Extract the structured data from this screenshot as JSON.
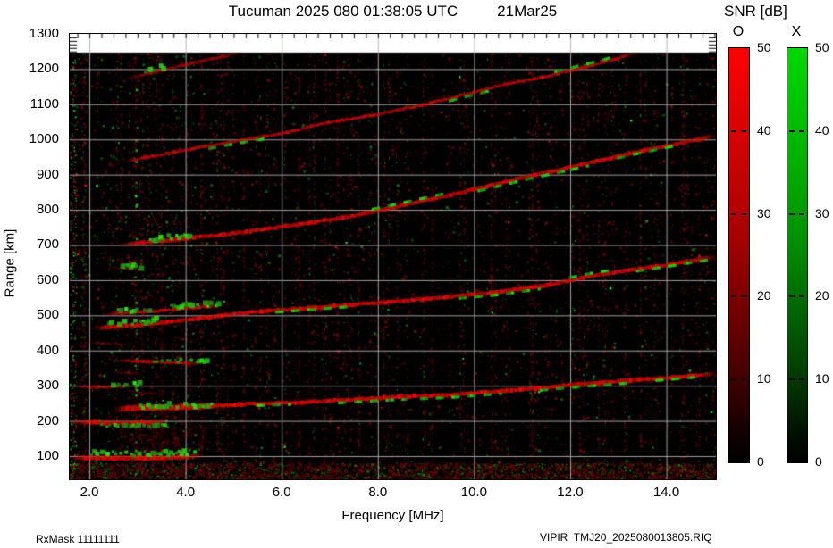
{
  "title": {
    "main": "Tucuman 2025 080 01:38:05 UTC",
    "date": "21Mar25"
  },
  "footer": {
    "left": "RxMask 11111111",
    "right": "VIPIR  TMJ20_2025080013805.RIQ"
  },
  "axes": {
    "x_label": "Frequency [MHz]",
    "y_label": "Range [km]",
    "xlim": [
      1.59,
      15.03
    ],
    "ylim": [
      34,
      1300
    ],
    "x_ticks": [
      {
        "v": 2,
        "label": "2.0"
      },
      {
        "v": 4,
        "label": "4.0"
      },
      {
        "v": 6,
        "label": "6.0"
      },
      {
        "v": 8,
        "label": "8.0"
      },
      {
        "v": 10,
        "label": "10.0"
      },
      {
        "v": 12,
        "label": "12.0"
      },
      {
        "v": 14,
        "label": "14.0"
      }
    ],
    "y_ticks": [
      {
        "v": 100,
        "label": "100"
      },
      {
        "v": 200,
        "label": "200"
      },
      {
        "v": 300,
        "label": "300"
      },
      {
        "v": 400,
        "label": "400"
      },
      {
        "v": 500,
        "label": "500"
      },
      {
        "v": 600,
        "label": "600"
      },
      {
        "v": 700,
        "label": "700"
      },
      {
        "v": 800,
        "label": "800"
      },
      {
        "v": 900,
        "label": "900"
      },
      {
        "v": 1000,
        "label": "1000"
      },
      {
        "v": 1100,
        "label": "1100"
      },
      {
        "v": 1200,
        "label": "1200"
      },
      {
        "v": 1300,
        "label": "1300"
      }
    ],
    "grid_x_step": 2,
    "grid_y_step": 100
  },
  "colorbar": {
    "title": "SNR [dB]",
    "range": [
      0,
      50
    ],
    "ticks": [
      50,
      40,
      30,
      20,
      10,
      0
    ],
    "bars": [
      {
        "label": "O",
        "mode": "ordinary",
        "color": "#ff0000"
      },
      {
        "label": "X",
        "mode": "extraordinary",
        "color": "#00cc00"
      }
    ]
  },
  "chart_data": {
    "type": "heatmap",
    "station": "Tucuman",
    "timestamp": "2025 080 01:38:05 UTC",
    "date_label": "21Mar25",
    "x_unit": "MHz",
    "y_unit": "km",
    "value_unit": "dB SNR",
    "background": "#000000",
    "o_mode_color": "#ff0000",
    "x_mode_color": "#00cc00",
    "grid_color": "#aaaaaa",
    "data_max_range_km": 1247,
    "traces": [
      {
        "name": "E-layer-1st-hop",
        "w": 5,
        "a": 1.0,
        "points": [
          [
            1.6,
            96
          ],
          [
            2.6,
            94
          ],
          [
            3.4,
            95
          ],
          [
            4.05,
            98
          ],
          [
            4.35,
            102
          ]
        ],
        "green": [
          {
            "f0": 2.05,
            "f1": 4.2,
            "dy": -5,
            "blob": true
          }
        ]
      },
      {
        "name": "E-layer-2nd-hop",
        "w": 4,
        "a": 0.95,
        "points": [
          [
            1.6,
            197
          ],
          [
            2.4,
            194
          ],
          [
            3.0,
            194
          ],
          [
            3.65,
            198
          ]
        ],
        "green": [
          {
            "f0": 2.2,
            "f1": 3.65,
            "dy": 4,
            "blob": true
          }
        ]
      },
      {
        "name": "E-layer-3rd-hop",
        "w": 3,
        "a": 0.7,
        "points": [
          [
            1.65,
            299
          ],
          [
            2.25,
            296
          ],
          [
            2.85,
            298
          ]
        ],
        "green": [
          {
            "f0": 2.5,
            "f1": 3.1,
            "dy": -3,
            "blob": true
          }
        ]
      },
      {
        "name": "Es-stub-335",
        "w": 2,
        "a": 0.45,
        "points": [
          [
            2.45,
            338
          ],
          [
            3.15,
            335
          ]
        ],
        "green": []
      },
      {
        "name": "Es-stub-370",
        "w": 3,
        "a": 0.8,
        "points": [
          [
            2.55,
            372
          ],
          [
            3.6,
            366
          ],
          [
            4.35,
            362
          ]
        ],
        "green": [
          {
            "f0": 3.35,
            "f1": 4.45,
            "dy": -2,
            "blob": true
          }
        ]
      },
      {
        "name": "faint-stub-420",
        "w": 2,
        "a": 0.35,
        "points": [
          [
            1.9,
            424
          ],
          [
            2.9,
            417
          ]
        ],
        "green": []
      },
      {
        "name": "faint-stub-280",
        "w": 2,
        "a": 0.5,
        "points": [
          [
            2.8,
            281
          ],
          [
            3.5,
            276
          ]
        ],
        "green": []
      },
      {
        "name": "faint-stub-635",
        "w": 2,
        "a": 0.45,
        "points": [
          [
            2.3,
            638
          ],
          [
            3.2,
            630
          ]
        ],
        "green": [
          {
            "f0": 2.7,
            "f1": 3.1,
            "dy": -2,
            "blob": true
          }
        ]
      },
      {
        "name": "F-region-1-hop",
        "w": 4,
        "a": 1.0,
        "thick_f1": 4.6,
        "points": [
          [
            2.5,
            228
          ],
          [
            2.8,
            236
          ],
          [
            3.5,
            238
          ],
          [
            4.3,
            240
          ],
          [
            5.3,
            248
          ],
          [
            6.5,
            253
          ],
          [
            8.1,
            266
          ],
          [
            9.5,
            274
          ],
          [
            11,
            289
          ],
          [
            11.8,
            300
          ],
          [
            13,
            313
          ],
          [
            14,
            322
          ],
          [
            15.03,
            334
          ]
        ],
        "green": [
          {
            "f0": 2.95,
            "f1": 4.6,
            "dy": -2,
            "blob": true
          },
          {
            "f0": 5.5,
            "f1": 6.2,
            "dy": 2
          },
          {
            "f0": 7.2,
            "f1": 8.6,
            "dy": 3
          },
          {
            "f0": 8.9,
            "f1": 10.6,
            "dy": 3
          },
          {
            "f0": 11.4,
            "f1": 13.3,
            "dy": 3
          },
          {
            "f0": 13.8,
            "f1": 14.7,
            "dy": 2
          }
        ]
      },
      {
        "name": "F-region-2-hop-upper-branch",
        "w": 3,
        "a": 0.85,
        "points": [
          [
            2.3,
            503
          ],
          [
            3.0,
            508
          ],
          [
            3.9,
            519
          ],
          [
            4.8,
            527
          ]
        ],
        "green": [
          {
            "f0": 2.6,
            "f1": 3.3,
            "dy": -3,
            "blob": true
          },
          {
            "f0": 3.7,
            "f1": 4.8,
            "dy": -3,
            "blob": true
          }
        ]
      },
      {
        "name": "F-region-2-hop",
        "w": 4,
        "a": 0.95,
        "points": [
          [
            2.05,
            463
          ],
          [
            3.0,
            472
          ],
          [
            4.2,
            490
          ],
          [
            5.2,
            507
          ],
          [
            6.5,
            520
          ],
          [
            8.3,
            539
          ],
          [
            9.4,
            552
          ],
          [
            10.5,
            566
          ],
          [
            11.5,
            585
          ],
          [
            12.5,
            614
          ],
          [
            13.5,
            633
          ],
          [
            14.3,
            650
          ],
          [
            15.03,
            666
          ]
        ],
        "green": [
          {
            "f0": 2.35,
            "f1": 3.4,
            "dy": -3,
            "blob": true
          },
          {
            "f0": 5.9,
            "f1": 7.5,
            "dy": 2
          },
          {
            "f0": 9.7,
            "f1": 11.4,
            "dy": 3
          },
          {
            "f0": 12.0,
            "f1": 12.9,
            "dy": -3
          },
          {
            "f0": 13.4,
            "f1": 15.0,
            "dy": 2
          }
        ]
      },
      {
        "name": "F-region-3-hop",
        "w": 4,
        "a": 0.9,
        "points": [
          [
            2.65,
            700
          ],
          [
            3.5,
            712
          ],
          [
            5,
            733
          ],
          [
            6.5,
            761
          ],
          [
            7.5,
            783
          ],
          [
            8.3,
            806
          ],
          [
            9.6,
            845
          ],
          [
            11,
            891
          ],
          [
            12.3,
            930
          ],
          [
            13.5,
            968
          ],
          [
            15.03,
            1010
          ]
        ],
        "green": [
          {
            "f0": 3.1,
            "f1": 4.1,
            "dy": -3,
            "blob": true
          },
          {
            "f0": 7.9,
            "f1": 9.4,
            "dy": -3
          },
          {
            "f0": 10.1,
            "f1": 12.4,
            "dy": 3
          },
          {
            "f0": 13.0,
            "f1": 14.3,
            "dy": 2
          }
        ]
      },
      {
        "name": "F-region-4-hop",
        "w": 3,
        "a": 0.8,
        "points": [
          [
            2.7,
            936
          ],
          [
            4,
            970
          ],
          [
            5.1,
            997
          ],
          [
            6.1,
            1020
          ],
          [
            7,
            1049
          ],
          [
            8,
            1072
          ],
          [
            9,
            1100
          ],
          [
            10.5,
            1152
          ],
          [
            11.5,
            1179
          ],
          [
            12.5,
            1212
          ],
          [
            13.4,
            1246
          ]
        ],
        "green": [
          {
            "f0": 4.5,
            "f1": 5.7,
            "dy": 3
          },
          {
            "f0": 9.5,
            "f1": 10.3,
            "dy": 3
          },
          {
            "f0": 11.7,
            "f1": 12.9,
            "dy": -3
          }
        ]
      },
      {
        "name": "F-region-5-hop",
        "w": 3,
        "a": 0.6,
        "points": [
          [
            2.75,
            1172
          ],
          [
            3.5,
            1196
          ],
          [
            4.3,
            1222
          ],
          [
            5.15,
            1246
          ]
        ],
        "green": [
          {
            "f0": 3.05,
            "f1": 3.6,
            "dy": -3,
            "blob": true
          }
        ]
      }
    ],
    "rfi_columns": [
      {
        "f": 2.95,
        "alpha": 0.1,
        "color": "red"
      },
      {
        "f": 3.5,
        "alpha": 0.05,
        "color": "red"
      },
      {
        "f": 4.32,
        "alpha": 0.06,
        "color": "red"
      },
      {
        "f": 4.78,
        "alpha": 0.05,
        "color": "red"
      },
      {
        "f": 5.2,
        "alpha": 0.04,
        "color": "red"
      },
      {
        "f": 6.35,
        "alpha": 0.05,
        "color": "red"
      },
      {
        "f": 7.15,
        "alpha": 0.04,
        "color": "red"
      },
      {
        "f": 9.12,
        "alpha": 0.05,
        "color": "red"
      },
      {
        "f": 10.35,
        "alpha": 0.04,
        "color": "red"
      },
      {
        "f": 11.2,
        "alpha": 0.05,
        "color": "red"
      },
      {
        "f": 12.18,
        "alpha": 0.04,
        "color": "red"
      },
      {
        "f": 13.45,
        "alpha": 0.04,
        "color": "red"
      },
      {
        "f": 14.35,
        "alpha": 0.04,
        "color": "red"
      }
    ],
    "diffuse": [
      {
        "f0": 2.6,
        "f1": 4.4,
        "r0": 112,
        "r1": 186,
        "n": 150,
        "color": "red",
        "alpha": 0.45
      },
      {
        "f0": 2.5,
        "f1": 4.2,
        "r0": 205,
        "r1": 232,
        "n": 60,
        "color": "red",
        "alpha": 0.3
      }
    ],
    "noise": {
      "seed": 1337,
      "n_speckle": 6500,
      "n_streak_cols": 170,
      "n_bottom_band": 2600,
      "n_left_edge": 260,
      "green_fraction": 0.2
    }
  }
}
